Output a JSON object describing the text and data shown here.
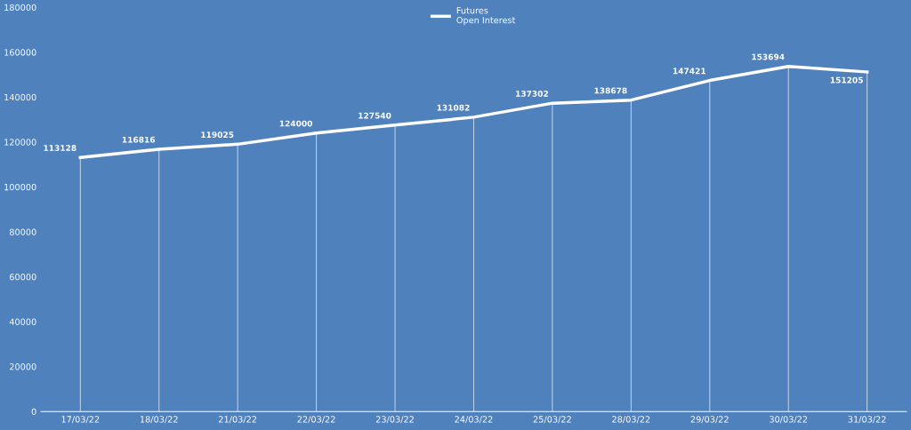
{
  "chart_data": {
    "type": "line",
    "categories": [
      "17/03/22",
      "18/03/22",
      "21/03/22",
      "22/03/22",
      "23/03/22",
      "24/03/22",
      "25/03/22",
      "28/03/22",
      "29/03/22",
      "30/03/22",
      "31/03/22"
    ],
    "series": [
      {
        "name": "Futures\nOpen Interest",
        "color": "#ffffff",
        "values": [
          113128,
          116816,
          119025,
          124000,
          127540,
          131082,
          137302,
          138678,
          147421,
          153694,
          151205
        ]
      }
    ],
    "ylim": [
      0,
      180000
    ],
    "yticks": [
      0,
      20000,
      40000,
      60000,
      80000,
      100000,
      120000,
      140000,
      160000,
      180000
    ],
    "data_labels": true,
    "legend": "top",
    "grid": "x",
    "marker": "none",
    "line_style": "solid"
  }
}
